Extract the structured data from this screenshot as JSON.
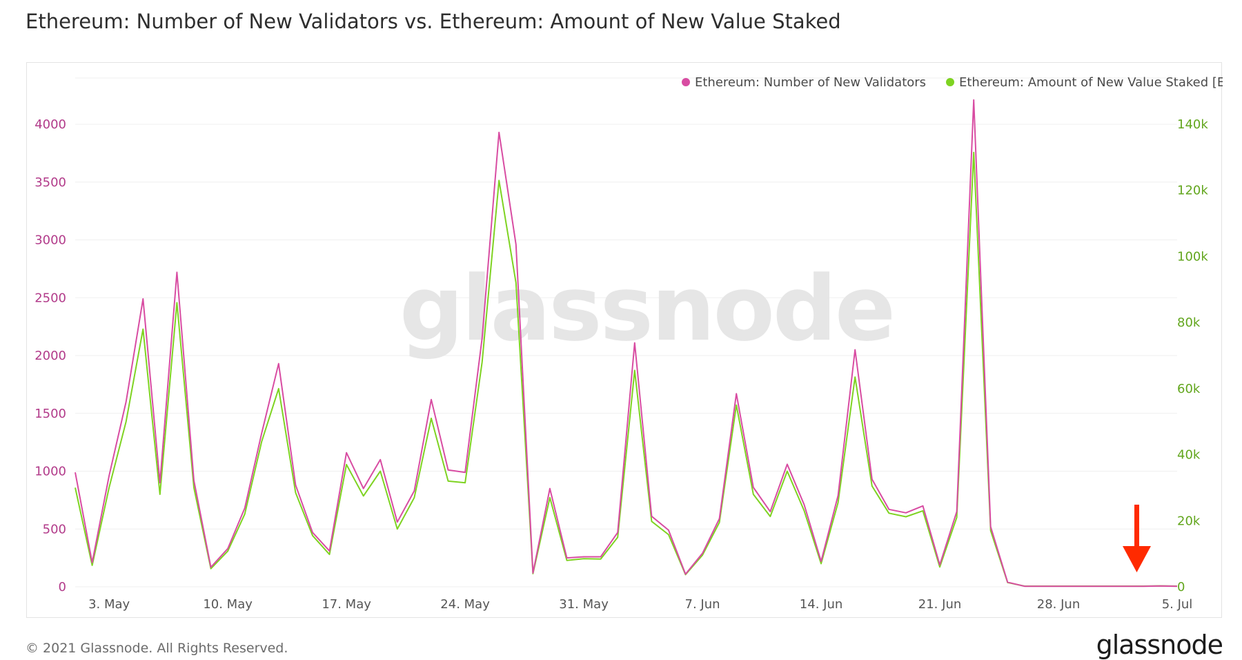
{
  "title": "Ethereum: Number of New Validators vs. Ethereum: Amount of New Value Staked",
  "footer": {
    "copyright": "© 2021 Glassnode. All Rights Reserved.",
    "logo": "glassnode"
  },
  "watermark": "glassnode",
  "colors": {
    "validators": "#d84ca2",
    "staked": "#7ed321",
    "left_axis": "#b23b8a",
    "right_axis": "#62a61d",
    "grid": "#efefef",
    "arrow": "#ff2a00"
  },
  "chart_data": {
    "type": "line",
    "legend_position": "top-right",
    "grid": true,
    "x_start": "2021-05-01",
    "x_end": "2021-07-05",
    "x_ticks": [
      {
        "date": "2021-05-03",
        "label": "3. May"
      },
      {
        "date": "2021-05-10",
        "label": "10. May"
      },
      {
        "date": "2021-05-17",
        "label": "17. May"
      },
      {
        "date": "2021-05-24",
        "label": "24. May"
      },
      {
        "date": "2021-05-31",
        "label": "31. May"
      },
      {
        "date": "2021-06-07",
        "label": "7. Jun"
      },
      {
        "date": "2021-06-14",
        "label": "14. Jun"
      },
      {
        "date": "2021-06-21",
        "label": "21. Jun"
      },
      {
        "date": "2021-06-28",
        "label": "28. Jun"
      },
      {
        "date": "2021-07-05",
        "label": "5. Jul"
      }
    ],
    "y_left": {
      "range": [
        0,
        4400
      ],
      "ticks": [
        0,
        500,
        1000,
        1500,
        2000,
        2500,
        3000,
        3500,
        4000
      ]
    },
    "y_right": {
      "range": [
        0,
        154000
      ],
      "ticks": [
        {
          "value": 0,
          "label": "0"
        },
        {
          "value": 20000,
          "label": "20k"
        },
        {
          "value": 40000,
          "label": "40k"
        },
        {
          "value": 60000,
          "label": "60k"
        },
        {
          "value": 80000,
          "label": "80k"
        },
        {
          "value": 100000,
          "label": "100k"
        },
        {
          "value": 120000,
          "label": "120k"
        },
        {
          "value": 140000,
          "label": "140k"
        }
      ]
    },
    "series": [
      {
        "name": "Ethereum: Number of New Validators",
        "axis": "left",
        "x": [
          "2021-05-01",
          "2021-05-02",
          "2021-05-03",
          "2021-05-04",
          "2021-05-05",
          "2021-05-06",
          "2021-05-07",
          "2021-05-08",
          "2021-05-09",
          "2021-05-10",
          "2021-05-11",
          "2021-05-12",
          "2021-05-13",
          "2021-05-14",
          "2021-05-15",
          "2021-05-16",
          "2021-05-17",
          "2021-05-18",
          "2021-05-19",
          "2021-05-20",
          "2021-05-21",
          "2021-05-22",
          "2021-05-23",
          "2021-05-24",
          "2021-05-25",
          "2021-05-26",
          "2021-05-27",
          "2021-05-28",
          "2021-05-29",
          "2021-05-30",
          "2021-05-31",
          "2021-06-01",
          "2021-06-02",
          "2021-06-03",
          "2021-06-04",
          "2021-06-05",
          "2021-06-06",
          "2021-06-07",
          "2021-06-08",
          "2021-06-09",
          "2021-06-10",
          "2021-06-11",
          "2021-06-12",
          "2021-06-13",
          "2021-06-14",
          "2021-06-15",
          "2021-06-16",
          "2021-06-17",
          "2021-06-18",
          "2021-06-19",
          "2021-06-20",
          "2021-06-21",
          "2021-06-22",
          "2021-06-23",
          "2021-06-24",
          "2021-06-25",
          "2021-06-26",
          "2021-06-27",
          "2021-06-28",
          "2021-06-29",
          "2021-06-30",
          "2021-07-01",
          "2021-07-02",
          "2021-07-03",
          "2021-07-04",
          "2021-07-05"
        ],
        "y": [
          990,
          210,
          960,
          1600,
          2490,
          900,
          2720,
          920,
          170,
          330,
          680,
          1330,
          1930,
          880,
          470,
          310,
          1160,
          850,
          1100,
          560,
          830,
          1620,
          1010,
          990,
          2150,
          3930,
          2960,
          120,
          850,
          250,
          260,
          260,
          470,
          2110,
          610,
          490,
          110,
          290,
          590,
          1670,
          860,
          650,
          1060,
          710,
          220,
          790,
          2050,
          930,
          670,
          640,
          700,
          190,
          650,
          4210,
          520,
          40,
          5,
          5,
          5,
          5,
          5,
          5,
          5,
          5,
          8,
          5
        ]
      },
      {
        "name": "Ethereum: Amount of New Value Staked [ETH]",
        "axis": "right",
        "x": [
          "2021-05-01",
          "2021-05-02",
          "2021-05-03",
          "2021-05-04",
          "2021-05-05",
          "2021-05-06",
          "2021-05-07",
          "2021-05-08",
          "2021-05-09",
          "2021-05-10",
          "2021-05-11",
          "2021-05-12",
          "2021-05-13",
          "2021-05-14",
          "2021-05-15",
          "2021-05-16",
          "2021-05-17",
          "2021-05-18",
          "2021-05-19",
          "2021-05-20",
          "2021-05-21",
          "2021-05-22",
          "2021-05-23",
          "2021-05-24",
          "2021-05-25",
          "2021-05-26",
          "2021-05-27",
          "2021-05-28",
          "2021-05-29",
          "2021-05-30",
          "2021-05-31",
          "2021-06-01",
          "2021-06-02",
          "2021-06-03",
          "2021-06-04",
          "2021-06-05",
          "2021-06-06",
          "2021-06-07",
          "2021-06-08",
          "2021-06-09",
          "2021-06-10",
          "2021-06-11",
          "2021-06-12",
          "2021-06-13",
          "2021-06-14",
          "2021-06-15",
          "2021-06-16",
          "2021-06-17",
          "2021-06-18",
          "2021-06-19",
          "2021-06-20",
          "2021-06-21",
          "2021-06-22",
          "2021-06-23",
          "2021-06-24",
          "2021-06-25",
          "2021-06-26",
          "2021-06-27",
          "2021-06-28",
          "2021-06-29",
          "2021-06-30",
          "2021-07-01",
          "2021-07-02",
          "2021-07-03",
          "2021-07-04",
          "2021-07-05"
        ],
        "y": [
          30000,
          6500,
          30000,
          50000,
          78000,
          28000,
          86000,
          30000,
          5500,
          10800,
          22000,
          44000,
          60000,
          28500,
          15500,
          9800,
          37000,
          27500,
          35000,
          17500,
          27000,
          51000,
          32000,
          31500,
          68000,
          123000,
          92000,
          4000,
          27000,
          8000,
          8500,
          8400,
          15000,
          65500,
          19800,
          15800,
          3700,
          9600,
          19500,
          55000,
          28000,
          21300,
          35000,
          23000,
          7000,
          25500,
          63500,
          30500,
          22300,
          21200,
          23000,
          6000,
          21000,
          131500,
          17000,
          1300,
          200,
          200,
          200,
          200,
          200,
          200,
          200,
          200,
          300,
          200
        ]
      }
    ]
  }
}
